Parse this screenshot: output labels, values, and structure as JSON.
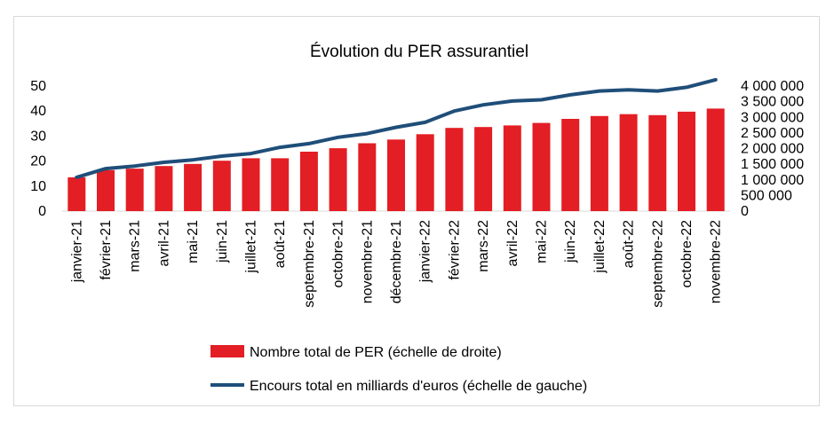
{
  "chart_data": {
    "type": "bar",
    "title": "Évolution du PER assurantiel",
    "categories": [
      "janvier-21",
      "février-21",
      "mars-21",
      "avril-21",
      "mai-21",
      "juin-21",
      "juillet-21",
      "août-21",
      "septembre-21",
      "octobre-21",
      "novembre-21",
      "décembre-21",
      "janvier-22",
      "février-22",
      "mars-22",
      "avril-22",
      "mai-22",
      "juin-22",
      "juillet-22",
      "août-22",
      "septembre-22",
      "octobre-22",
      "novembre-22"
    ],
    "series": [
      {
        "name": "Nombre total de PER  (échelle de droite)",
        "type": "bar",
        "axis": "right",
        "color": "#e31e24",
        "values": [
          1080000,
          1310000,
          1360000,
          1440000,
          1510000,
          1610000,
          1690000,
          1690000,
          1900000,
          2010000,
          2170000,
          2290000,
          2460000,
          2660000,
          2690000,
          2740000,
          2820000,
          2950000,
          3040000,
          3100000,
          3070000,
          3180000,
          3280000
        ]
      },
      {
        "name": "Encours total en milliards d'euros (échelle de gauche)",
        "type": "line",
        "axis": "left",
        "color": "#1f4e79",
        "values": [
          13.5,
          17.0,
          18.0,
          19.5,
          20.5,
          22.0,
          23.0,
          25.5,
          27.0,
          29.5,
          31.0,
          33.5,
          35.5,
          40.0,
          42.5,
          44.0,
          44.5,
          46.5,
          48.0,
          48.5,
          48.0,
          49.5,
          52.5
        ]
      }
    ],
    "y_left": {
      "ylim": [
        0,
        50
      ],
      "ticks": [
        "0",
        "10",
        "20",
        "30",
        "40",
        "50"
      ]
    },
    "y_right": {
      "ylim": [
        0,
        4000000
      ],
      "ticks": [
        "0",
        "500 000",
        "1 000 000",
        "1 500 000",
        "2 000 000",
        "2 500 000",
        "3 000 000",
        "3 500 000",
        "4 000 000"
      ]
    },
    "grid": false,
    "legend_position": "bottom"
  }
}
